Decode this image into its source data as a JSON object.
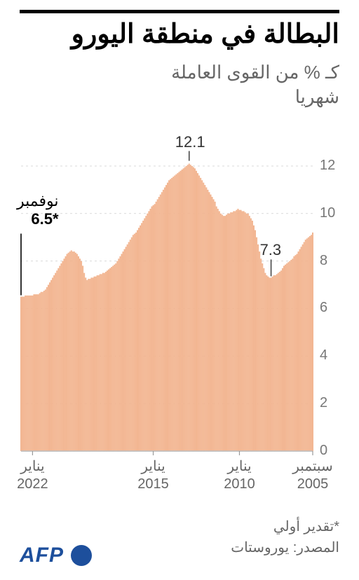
{
  "title": "البطالة في منطقة اليورو",
  "subtitle_line1": "كـ % من القوى العاملة",
  "subtitle_line2": "شهريا",
  "chart": {
    "type": "area-bar",
    "background_color": "#ffffff",
    "bar_color": "#f2b48f",
    "grid_color": "#d9d9d9",
    "axis_color": "#d0d0d0",
    "ylim": [
      0,
      12.5
    ],
    "yticks": [
      0,
      2,
      4,
      6,
      8,
      10,
      12
    ],
    "ytick_labels": [
      "0",
      "2",
      "4",
      "6",
      "8",
      "10",
      "12"
    ],
    "ytick_fontsize": 20,
    "ytick_color": "#777777",
    "series_values": [
      9.2,
      9.1,
      9.05,
      9.0,
      8.95,
      8.9,
      8.8,
      8.7,
      8.6,
      8.5,
      8.4,
      8.3,
      8.25,
      8.2,
      8.1,
      8.05,
      8.0,
      7.95,
      7.9,
      7.85,
      7.8,
      7.7,
      7.6,
      7.55,
      7.5,
      7.45,
      7.4,
      7.4,
      7.35,
      7.3,
      7.3,
      7.35,
      7.4,
      7.5,
      7.7,
      7.9,
      8.1,
      8.4,
      8.7,
      9.0,
      9.3,
      9.5,
      9.7,
      9.8,
      9.9,
      10.0,
      10.0,
      10.05,
      10.1,
      10.1,
      10.15,
      10.15,
      10.2,
      10.15,
      10.1,
      10.1,
      10.05,
      10.05,
      10.0,
      10.0,
      9.95,
      9.9,
      9.9,
      9.95,
      10.0,
      10.1,
      10.2,
      10.3,
      10.5,
      10.6,
      10.7,
      10.8,
      10.9,
      11.0,
      11.1,
      11.2,
      11.3,
      11.4,
      11.5,
      11.6,
      11.7,
      11.8,
      11.9,
      11.95,
      12.0,
      12.05,
      12.1,
      12.05,
      12.0,
      11.95,
      11.9,
      11.85,
      11.8,
      11.75,
      11.7,
      11.65,
      11.6,
      11.55,
      11.5,
      11.45,
      11.4,
      11.3,
      11.2,
      11.1,
      11.0,
      10.9,
      10.8,
      10.7,
      10.6,
      10.5,
      10.4,
      10.35,
      10.3,
      10.2,
      10.1,
      10.0,
      9.9,
      9.8,
      9.7,
      9.6,
      9.5,
      9.4,
      9.3,
      9.2,
      9.15,
      9.1,
      9.0,
      8.9,
      8.8,
      8.7,
      8.6,
      8.5,
      8.4,
      8.3,
      8.2,
      8.1,
      8.0,
      7.9,
      7.85,
      7.8,
      7.75,
      7.7,
      7.65,
      7.6,
      7.55,
      7.5,
      7.5,
      7.45,
      7.45,
      7.4,
      7.4,
      7.35,
      7.35,
      7.3,
      7.3,
      7.25,
      7.25,
      7.2,
      7.3,
      7.5,
      7.8,
      8.0,
      8.1,
      8.2,
      8.3,
      8.35,
      8.4,
      8.4,
      8.45,
      8.4,
      8.35,
      8.3,
      8.2,
      8.1,
      8.0,
      7.9,
      7.8,
      7.7,
      7.6,
      7.5,
      7.4,
      7.3,
      7.2,
      7.1,
      7.0,
      6.9,
      6.8,
      6.75,
      6.7,
      6.7,
      6.65,
      6.6,
      6.6,
      6.6,
      6.6,
      6.55,
      6.55,
      6.55,
      6.55,
      6.55,
      6.55,
      6.5,
      6.5,
      6.5
    ],
    "xticks": [
      {
        "index": 0,
        "line1": "سبتمبر",
        "line2": "2005"
      },
      {
        "index": 51,
        "line1": "يناير",
        "line2": "2010"
      },
      {
        "index": 111,
        "line1": "يناير",
        "line2": "2015"
      },
      {
        "index": 195,
        "line1": "يناير",
        "line2": "2022"
      }
    ],
    "annotations": {
      "peak": {
        "value": "12.1",
        "index": 86,
        "y": 12.1
      },
      "low": {
        "value": "7.3",
        "index": 29,
        "y": 7.3
      },
      "last": {
        "label": "نوفمبر",
        "value": "6.5*",
        "index": 203,
        "y": 6.5
      }
    }
  },
  "footnote": "*تقدير أولي",
  "source": "المصدر: يوروستات",
  "logo": {
    "text": "AFP",
    "brand_color": "#1d4f9c"
  }
}
